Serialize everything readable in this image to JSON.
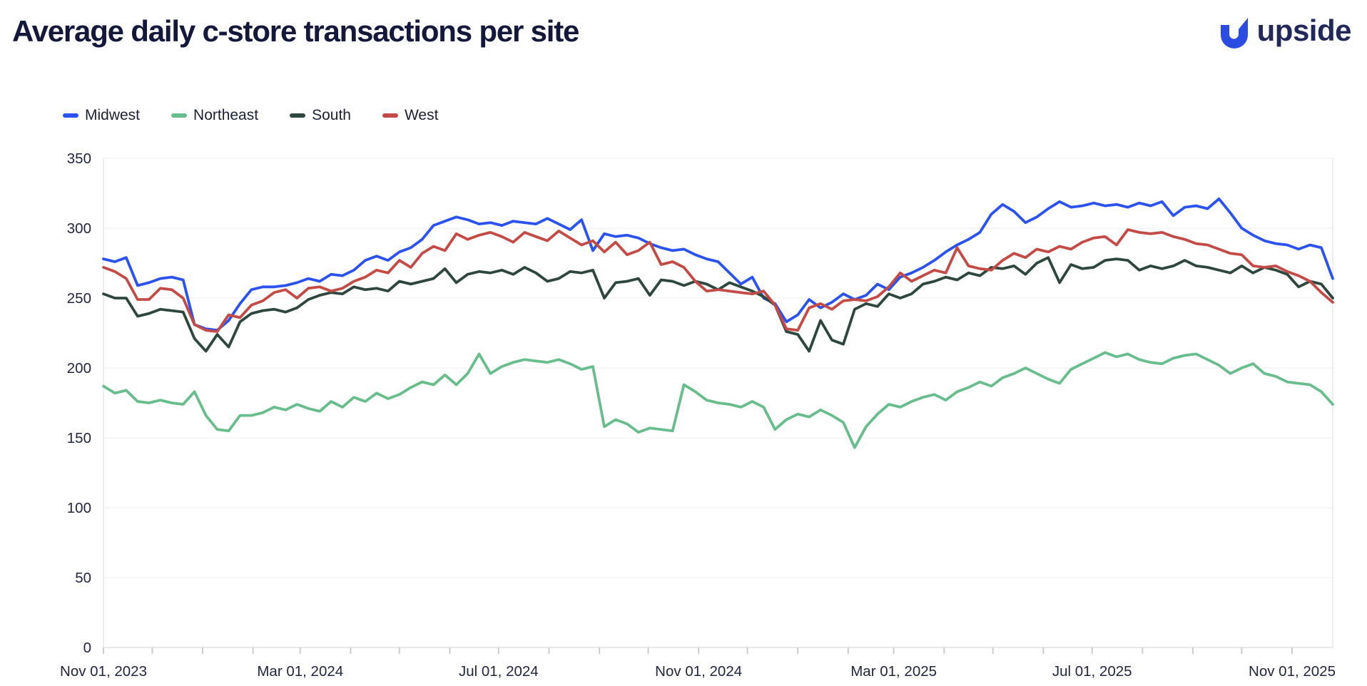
{
  "header": {
    "title": "Average daily c-store transactions per site",
    "brand": "upside",
    "brand_blue": "#2b4ce0",
    "brand_navy": "#23285a"
  },
  "chart_data": {
    "type": "line",
    "title": "Average daily c-store transactions per site",
    "x_start_date": "Nov 01, 2023",
    "interval": "weekly",
    "total_days": 756,
    "ylim": [
      0,
      350
    ],
    "y_ticks": [
      0,
      50,
      100,
      150,
      200,
      250,
      300,
      350
    ],
    "grid": true,
    "legend_position": "top-left",
    "x_tick_labels": [
      "Nov 01, 2023",
      "Mar 01, 2024",
      "Jul 01, 2024",
      "Nov 01, 2024",
      "Mar 01, 2025",
      "Jul 01, 2025",
      "Nov 01, 2025"
    ],
    "x_ticks": [
      {
        "day": 0,
        "label": "Nov 01, 2023"
      },
      {
        "day": 30,
        "label": ""
      },
      {
        "day": 61,
        "label": ""
      },
      {
        "day": 92,
        "label": ""
      },
      {
        "day": 121,
        "label": "Mar 01, 2024"
      },
      {
        "day": 152,
        "label": ""
      },
      {
        "day": 182,
        "label": ""
      },
      {
        "day": 213,
        "label": ""
      },
      {
        "day": 243,
        "label": "Jul 01, 2024"
      },
      {
        "day": 274,
        "label": ""
      },
      {
        "day": 305,
        "label": ""
      },
      {
        "day": 335,
        "label": ""
      },
      {
        "day": 366,
        "label": "Nov 01, 2024"
      },
      {
        "day": 396,
        "label": ""
      },
      {
        "day": 427,
        "label": ""
      },
      {
        "day": 458,
        "label": ""
      },
      {
        "day": 486,
        "label": "Mar 01, 2025"
      },
      {
        "day": 517,
        "label": ""
      },
      {
        "day": 547,
        "label": ""
      },
      {
        "day": 578,
        "label": ""
      },
      {
        "day": 608,
        "label": "Jul 01, 2025"
      },
      {
        "day": 639,
        "label": ""
      },
      {
        "day": 670,
        "label": ""
      },
      {
        "day": 700,
        "label": ""
      },
      {
        "day": 731,
        "label": "Nov 01, 2025"
      }
    ],
    "series": [
      {
        "name": "Midwest",
        "color": "#2a52ee",
        "values": [
          278,
          276,
          279,
          259,
          261,
          264,
          265,
          263,
          231,
          228,
          227,
          234,
          246,
          256,
          258,
          258,
          259,
          261,
          264,
          262,
          267,
          266,
          270,
          277,
          280,
          277,
          283,
          286,
          292,
          302,
          305,
          308,
          306,
          303,
          304,
          302,
          305,
          304,
          303,
          307,
          303,
          299,
          306,
          284,
          296,
          294,
          295,
          293,
          289,
          286,
          284,
          285,
          281,
          278,
          276,
          268,
          260,
          265,
          250,
          246,
          233,
          238,
          249,
          243,
          247,
          253,
          249,
          252,
          260,
          256,
          265,
          268,
          272,
          277,
          283,
          288,
          292,
          297,
          310,
          317,
          312,
          304,
          308,
          314,
          319,
          315,
          316,
          318,
          316,
          317,
          315,
          318,
          316,
          319,
          309,
          315,
          316,
          314,
          321,
          311,
          300,
          295,
          291,
          289,
          288,
          285,
          288,
          286,
          264
        ]
      },
      {
        "name": "Northeast",
        "color": "#68bd8c",
        "values": [
          187,
          182,
          184,
          176,
          175,
          177,
          175,
          174,
          183,
          166,
          156,
          155,
          166,
          166,
          168,
          172,
          170,
          174,
          171,
          169,
          176,
          172,
          179,
          176,
          182,
          178,
          181,
          186,
          190,
          188,
          195,
          188,
          196,
          210,
          196,
          201,
          204,
          206,
          205,
          204,
          206,
          203,
          199,
          201,
          158,
          163,
          160,
          154,
          157,
          156,
          155,
          188,
          183,
          177,
          175,
          174,
          172,
          176,
          172,
          156,
          163,
          167,
          165,
          170,
          166,
          161,
          143,
          158,
          167,
          174,
          172,
          176,
          179,
          181,
          177,
          183,
          186,
          190,
          187,
          193,
          196,
          200,
          196,
          192,
          189,
          199,
          203,
          207,
          211,
          208,
          210,
          206,
          204,
          203,
          207,
          209,
          210,
          206,
          202,
          196,
          200,
          203,
          196,
          194,
          190,
          189,
          188,
          183,
          174
        ]
      },
      {
        "name": "South",
        "color": "#2e473d",
        "values": [
          253,
          250,
          250,
          237,
          239,
          242,
          241,
          240,
          221,
          212,
          224,
          215,
          233,
          239,
          241,
          242,
          240,
          243,
          249,
          252,
          254,
          253,
          258,
          256,
          257,
          255,
          262,
          260,
          262,
          264,
          271,
          261,
          267,
          269,
          268,
          270,
          267,
          272,
          268,
          262,
          264,
          269,
          268,
          270,
          250,
          261,
          262,
          264,
          252,
          263,
          262,
          259,
          262,
          260,
          256,
          261,
          258,
          255,
          251,
          245,
          226,
          224,
          212,
          234,
          220,
          217,
          242,
          246,
          244,
          253,
          250,
          253,
          260,
          262,
          265,
          263,
          268,
          266,
          272,
          271,
          273,
          267,
          275,
          279,
          261,
          274,
          271,
          272,
          277,
          278,
          277,
          270,
          273,
          271,
          273,
          277,
          273,
          272,
          270,
          268,
          273,
          268,
          272,
          270,
          267,
          258,
          262,
          260,
          250
        ]
      },
      {
        "name": "West",
        "color": "#c44a46",
        "values": [
          272,
          269,
          264,
          249,
          249,
          257,
          256,
          250,
          231,
          227,
          226,
          238,
          236,
          245,
          248,
          254,
          256,
          250,
          257,
          258,
          255,
          257,
          262,
          265,
          270,
          268,
          277,
          272,
          282,
          287,
          284,
          296,
          292,
          295,
          297,
          294,
          290,
          297,
          294,
          291,
          298,
          293,
          288,
          291,
          283,
          290,
          281,
          284,
          290,
          274,
          276,
          272,
          262,
          255,
          256,
          255,
          254,
          253,
          255,
          245,
          228,
          227,
          243,
          246,
          242,
          248,
          249,
          248,
          251,
          258,
          268,
          262,
          266,
          270,
          268,
          286,
          273,
          271,
          270,
          277,
          282,
          279,
          285,
          283,
          287,
          285,
          290,
          293,
          294,
          288,
          299,
          297,
          296,
          297,
          294,
          292,
          289,
          288,
          285,
          282,
          281,
          273,
          272,
          273,
          269,
          266,
          262,
          254,
          247
        ]
      }
    ],
    "style": {
      "grid_color": "#eef0f3",
      "border_color": "#e6e8ec",
      "axis_line_color": "#dfe2e6",
      "tick_color": "#c9cdd3",
      "label_color": "#23263f",
      "line_width": 3.8
    }
  }
}
